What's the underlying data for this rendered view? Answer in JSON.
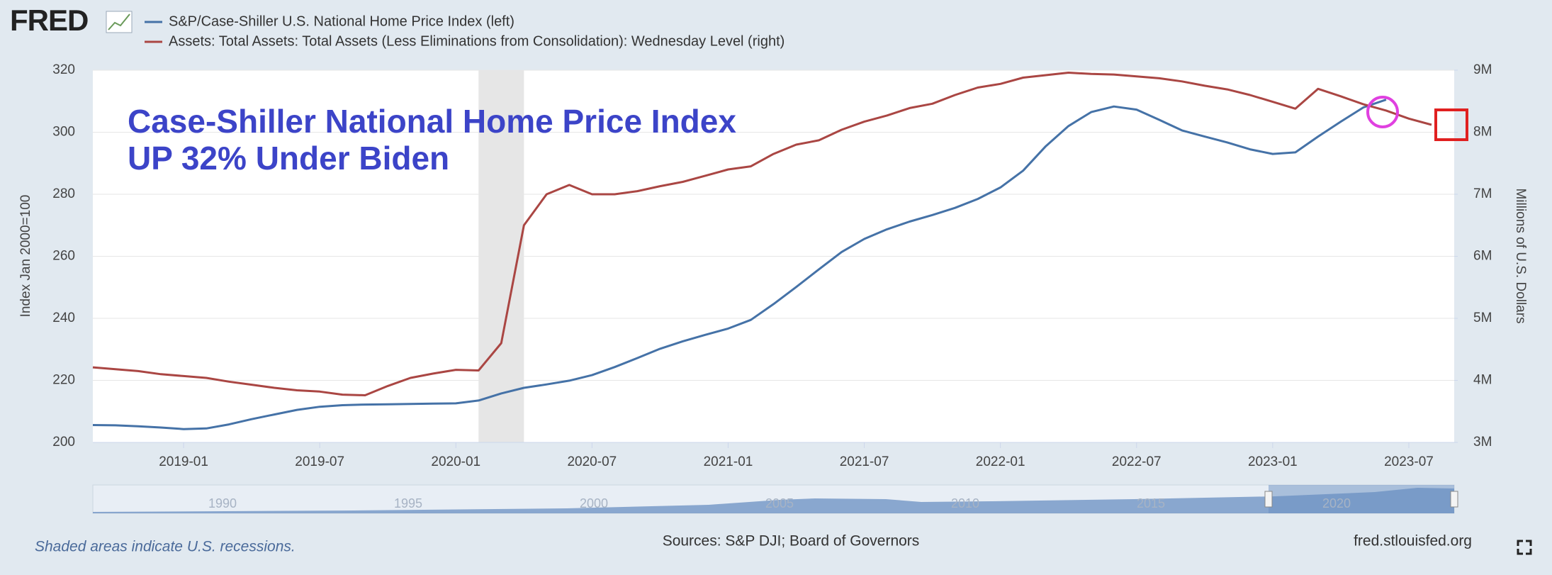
{
  "logo": "FRED",
  "chart_data": {
    "type": "line",
    "annotation": [
      "Case-Shiller National Home Price Index",
      "UP 32% Under Biden"
    ],
    "y_label": "Index Jan 2000=100",
    "y2_label": "Millions of U.S. Dollars",
    "x": [
      "2018-09",
      "2018-10",
      "2018-11",
      "2018-12",
      "2019-01",
      "2019-02",
      "2019-03",
      "2019-04",
      "2019-05",
      "2019-06",
      "2019-07",
      "2019-08",
      "2019-09",
      "2019-10",
      "2019-11",
      "2019-12",
      "2020-01",
      "2020-02",
      "2020-03",
      "2020-04",
      "2020-05",
      "2020-06",
      "2020-07",
      "2020-08",
      "2020-09",
      "2020-10",
      "2020-11",
      "2020-12",
      "2021-01",
      "2021-02",
      "2021-03",
      "2021-04",
      "2021-05",
      "2021-06",
      "2021-07",
      "2021-08",
      "2021-09",
      "2021-10",
      "2021-11",
      "2021-12",
      "2022-01",
      "2022-02",
      "2022-03",
      "2022-04",
      "2022-05",
      "2022-06",
      "2022-07",
      "2022-08",
      "2022-09",
      "2022-10",
      "2022-11",
      "2022-12",
      "2023-01",
      "2023-02",
      "2023-03",
      "2023-04",
      "2023-05",
      "2023-06",
      "2023-07",
      "2023-08"
    ],
    "xlim": [
      "2018-09",
      "2023-09"
    ],
    "xticks": [
      "2019-01",
      "2019-07",
      "2020-01",
      "2020-07",
      "2021-01",
      "2021-07",
      "2022-01",
      "2022-07",
      "2023-01",
      "2023-07"
    ],
    "ylim": [
      200,
      320
    ],
    "yticks": [
      200,
      220,
      240,
      260,
      280,
      300,
      320
    ],
    "y2lim": [
      3000000,
      9000000
    ],
    "y2ticks": [
      {
        "value": 3000000,
        "label": "3M"
      },
      {
        "value": 4000000,
        "label": "4M"
      },
      {
        "value": 5000000,
        "label": "5M"
      },
      {
        "value": 6000000,
        "label": "6M"
      },
      {
        "value": 7000000,
        "label": "7M"
      },
      {
        "value": 8000000,
        "label": "8M"
      },
      {
        "value": 9000000,
        "label": "9M"
      }
    ],
    "grid": true,
    "recessions": [
      {
        "start": "2020-02",
        "end": "2020-04"
      }
    ],
    "recession_color": "#e6e6e6",
    "series": [
      {
        "name": "S&P/Case-Shiller U.S. National Home Price Index (left)",
        "color": "#4572a7",
        "values": [
          205.6,
          205.5,
          205.2,
          204.8,
          204.3,
          204.5,
          205.8,
          207.5,
          209.0,
          210.5,
          211.5,
          212.0,
          212.2,
          212.3,
          212.4,
          212.5,
          212.6,
          213.5,
          215.8,
          217.6,
          218.7,
          219.9,
          221.7,
          224.3,
          227.2,
          230.2,
          232.6,
          234.7,
          236.7,
          239.5,
          244.6,
          250.1,
          255.8,
          261.4,
          265.6,
          268.7,
          271.2,
          273.3,
          275.6,
          278.5,
          282.2,
          287.6,
          295.5,
          302.0,
          306.5,
          308.3,
          307.3,
          304.0,
          300.6,
          298.6,
          296.7,
          294.5,
          293.0,
          293.5,
          298.6,
          303.4,
          308.0,
          310.5,
          null,
          null
        ]
      },
      {
        "name": "Assets: Total Assets: Total Assets (Less Eliminations from Consolidation): Wednesday Level (right)",
        "color": "#aa4643",
        "axis": "y2",
        "values": [
          4210000,
          4180000,
          4150000,
          4100000,
          4070000,
          4040000,
          3980000,
          3930000,
          3880000,
          3840000,
          3820000,
          3770000,
          3760000,
          3910000,
          4040000,
          4110000,
          4170000,
          4160000,
          4600000,
          6500000,
          7000000,
          7150000,
          7000000,
          7000000,
          7050000,
          7130000,
          7200000,
          7300000,
          7400000,
          7450000,
          7650000,
          7800000,
          7870000,
          8040000,
          8170000,
          8270000,
          8390000,
          8460000,
          8600000,
          8720000,
          8780000,
          8880000,
          8920000,
          8960000,
          8940000,
          8930000,
          8900000,
          8870000,
          8820000,
          8750000,
          8690000,
          8600000,
          8490000,
          8380000,
          8700000,
          8580000,
          8450000,
          8350000,
          8220000,
          8120000
        ]
      }
    ]
  },
  "navigator": {
    "labels": [
      "1990",
      "1995",
      "2000",
      "2005",
      "2010",
      "2015",
      "2020"
    ]
  },
  "footer": {
    "note": "Shaded areas indicate U.S. recessions.",
    "sources": "Sources: S&P DJI; Board of Governors",
    "site": "fred.stlouisfed.org"
  }
}
